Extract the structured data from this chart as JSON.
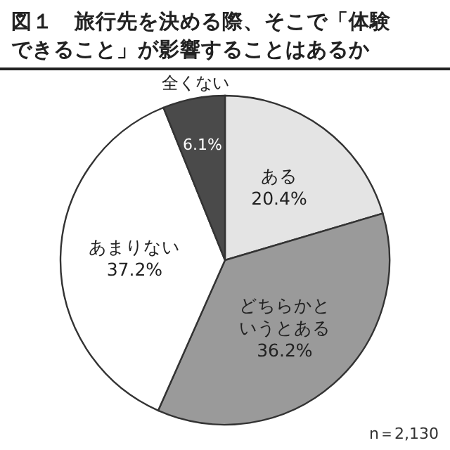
{
  "chart_data": {
    "type": "pie",
    "title": "図１　旅行先を決める際、そこで「体験できること」が影響することはあるか",
    "categories": [
      "ある",
      "どちらかというとある",
      "あまりない",
      "全くない"
    ],
    "values": [
      20.4,
      36.2,
      37.2,
      6.1
    ],
    "value_labels": [
      "20.4%",
      "36.2%",
      "37.2%",
      "6.1%"
    ],
    "colors": [
      "#e4e4e4",
      "#9a9a9a",
      "#ffffff",
      "#4a4a4a"
    ],
    "annotations": [
      "n＝2,130"
    ]
  }
}
